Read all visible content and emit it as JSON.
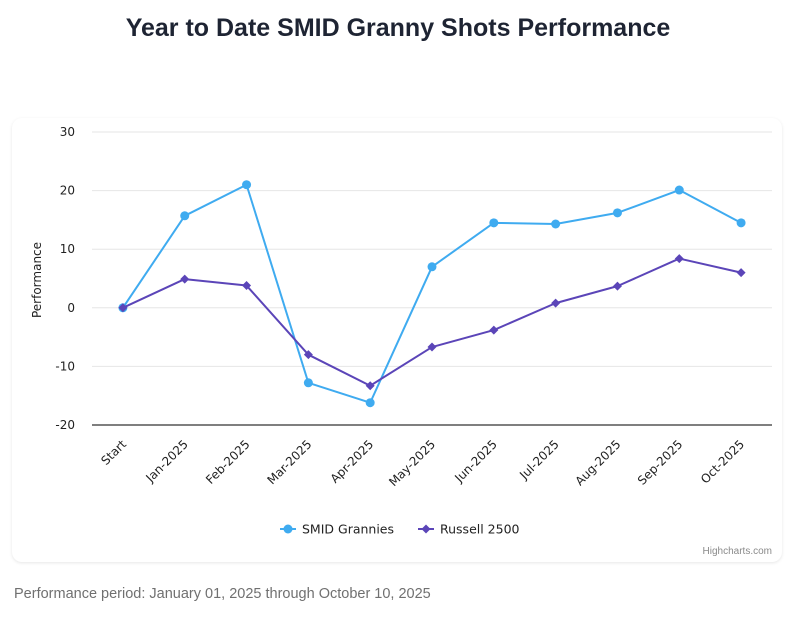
{
  "page": {
    "title": "Year to Date SMID Granny Shots Performance",
    "credit": "Highcharts.com",
    "footnote": "Performance period: January 01, 2025 through October 10, 2025"
  },
  "chart_data": {
    "type": "line",
    "title": "Year to Date SMID Granny Shots Performance",
    "xlabel": "",
    "ylabel": "Performance",
    "ylim": [
      -20,
      30
    ],
    "yticks": [
      -20,
      -10,
      0,
      10,
      20,
      30
    ],
    "grid": true,
    "legend": "bottom-center",
    "categories": [
      "Start",
      "Jan-2025",
      "Feb-2025",
      "Mar-2025",
      "Apr-2025",
      "May-2025",
      "Jun-2025",
      "Jul-2025",
      "Aug-2025",
      "Sep-2025",
      "Oct-2025"
    ],
    "series": [
      {
        "name": "SMID Grannies",
        "color": "#3fabf0",
        "marker": "circle",
        "values": [
          0,
          15.7,
          21.0,
          -12.8,
          -16.2,
          7.0,
          14.5,
          14.3,
          16.2,
          20.1,
          14.5
        ]
      },
      {
        "name": "Russell 2500",
        "color": "#5b45b8",
        "marker": "diamond",
        "values": [
          0,
          4.9,
          3.8,
          -8.0,
          -13.3,
          -6.7,
          -3.8,
          0.8,
          3.7,
          8.4,
          6.0
        ]
      }
    ]
  }
}
